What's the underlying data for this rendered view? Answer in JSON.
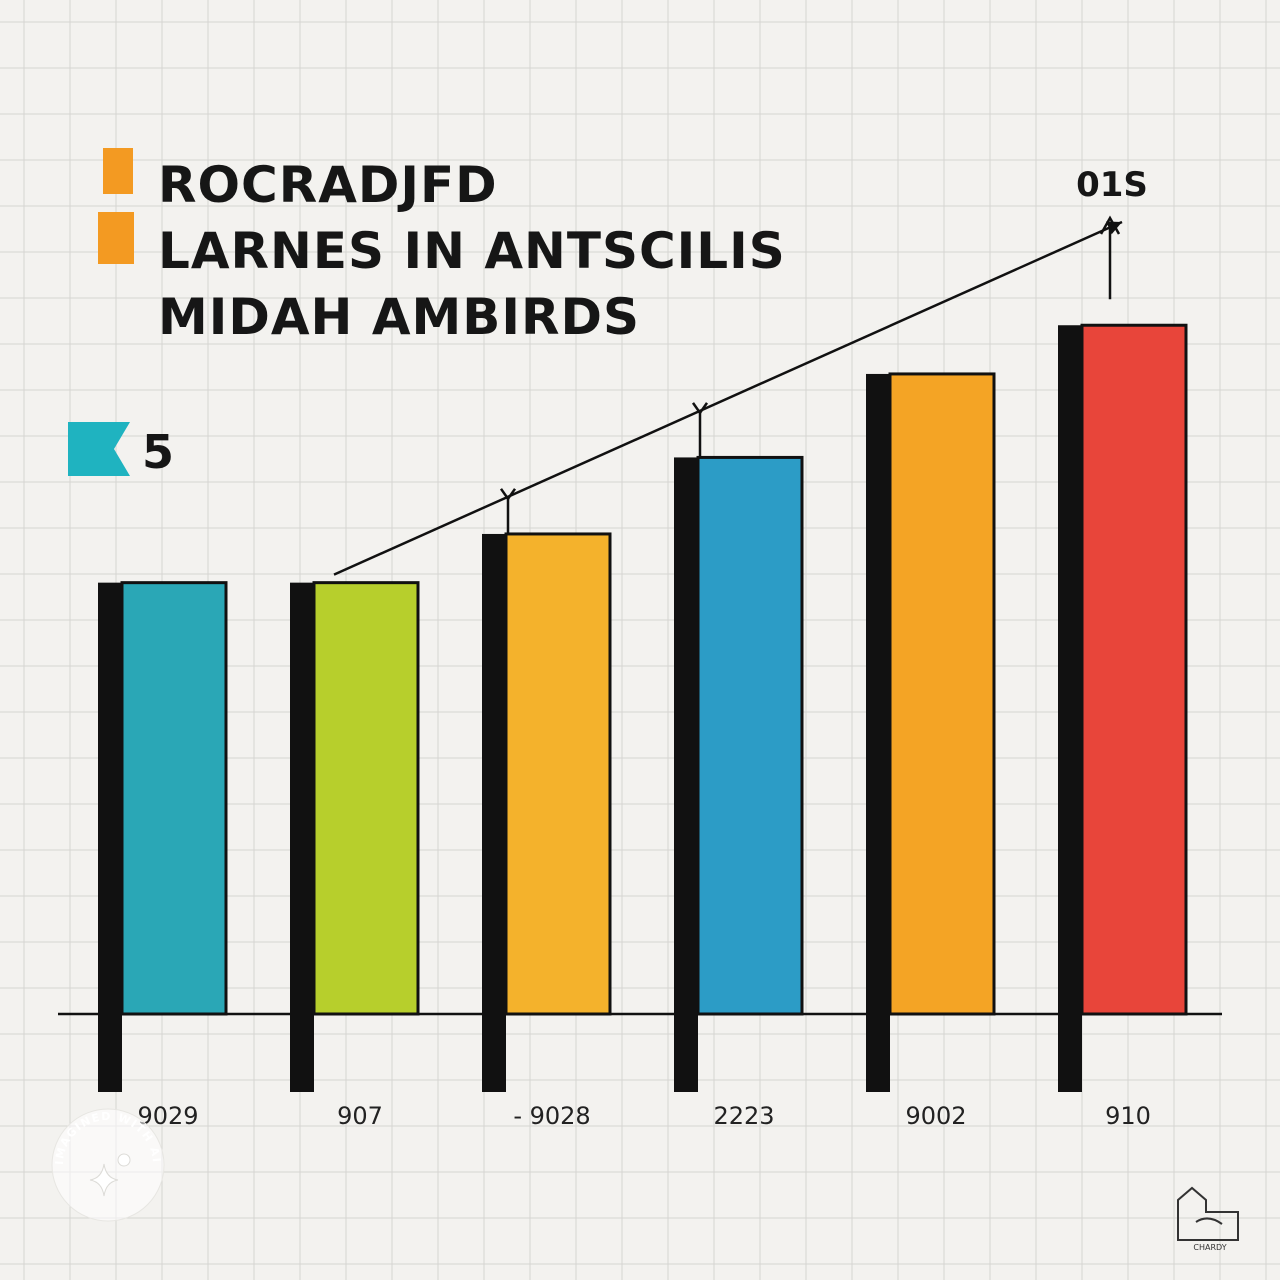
{
  "title_lines": [
    "ROCRADJFD",
    "LARNES IN ANTSCILIS",
    "MIDAH  AMBIRDS"
  ],
  "side_marker": {
    "label": "5",
    "color": "#1fb3c0"
  },
  "trend_label": "01S",
  "watermark_text": "IMAGINED WITH AI",
  "logo_text": "CHARDY",
  "colors": {
    "background": "#f3f2ef",
    "grid": "#d6d5d2",
    "shadow": "#111111",
    "title_swatch": "#f39a22"
  },
  "chart_data": {
    "type": "bar",
    "categories": [
      "9029",
      "907",
      "- 9028",
      "2223",
      "9002",
      "910"
    ],
    "values": [
      62,
      62,
      69,
      80,
      92,
      99
    ],
    "colors": [
      "#2aa7b6",
      "#b7cf2c",
      "#f4b22c",
      "#2c9cc6",
      "#f4a425",
      "#e8453a"
    ],
    "ylim": [
      0,
      140
    ],
    "grid": true,
    "trend_line": true
  }
}
